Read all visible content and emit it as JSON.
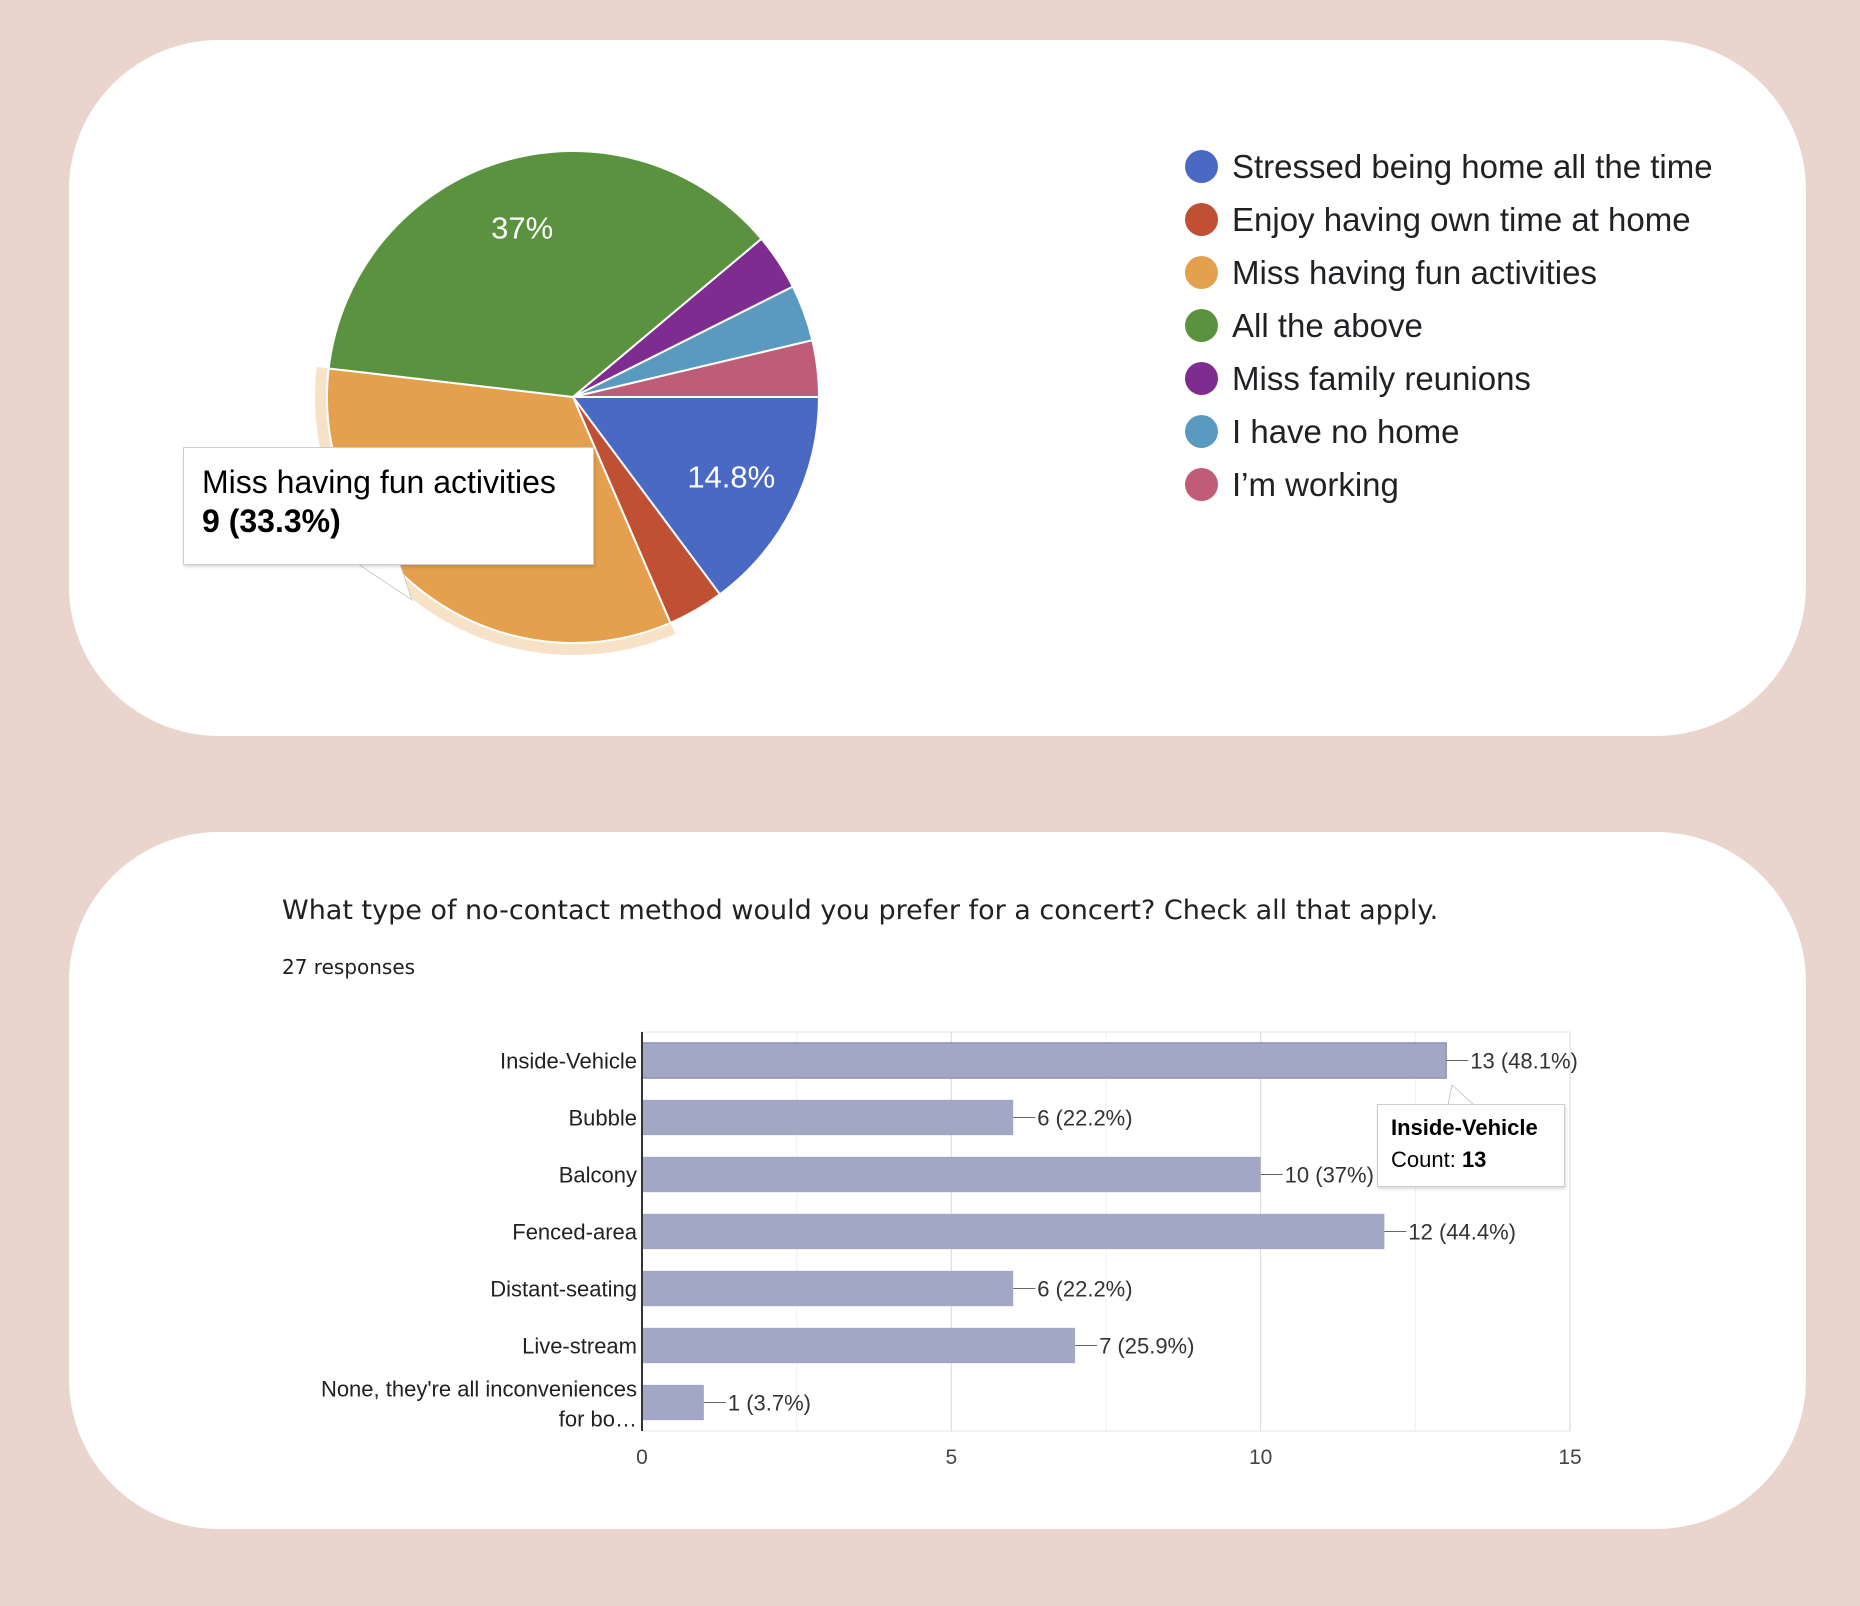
{
  "pie_chart": {
    "tooltip": {
      "label": "Miss having fun activities",
      "value": "9 (33.3%)"
    }
  },
  "bar_chart": {
    "question": "What type of no-contact method would you prefer for a concert? Check all that apply.",
    "responses": "27 responses",
    "tooltip": {
      "label": "Inside-Vehicle",
      "count_prefix": "Count: ",
      "count": "13"
    }
  },
  "chart_data": [
    {
      "type": "pie",
      "slices": [
        {
          "label": "Stressed being home all the time",
          "value": 4,
          "percent_label": "14.8%",
          "color": "#4a69c2"
        },
        {
          "label": "Enjoy having own time at home",
          "value": 1,
          "percent_label": "",
          "color": "#bf5033"
        },
        {
          "label": "Miss having fun activities",
          "value": 9,
          "percent_label": "",
          "color": "#e5a04e"
        },
        {
          "label": "All the above",
          "value": 10,
          "percent_label": "37%",
          "color": "#5b9240"
        },
        {
          "label": "Miss family reunions",
          "value": 1,
          "percent_label": "",
          "color": "#7e2c8f"
        },
        {
          "label": "I have no home",
          "value": 1,
          "percent_label": "",
          "color": "#5b9ac0"
        },
        {
          "label": "I’m working",
          "value": 1,
          "percent_label": "",
          "color": "#c05c77"
        }
      ],
      "highlighted": "Miss having fun activities",
      "legend_position": "right"
    },
    {
      "type": "bar",
      "orientation": "horizontal",
      "categories": [
        "Inside-Vehicle",
        "Bubble",
        "Balcony",
        "Fenced-area",
        "Distant-seating",
        "Live-stream",
        "None, they're all inconveniences for bo…"
      ],
      "category_lines": [
        [
          "Inside-Vehicle"
        ],
        [
          "Bubble"
        ],
        [
          "Balcony"
        ],
        [
          "Fenced-area"
        ],
        [
          "Distant-seating"
        ],
        [
          "Live-stream"
        ],
        [
          "None, they're all inconveniences",
          "for bo…"
        ]
      ],
      "values": [
        13,
        6,
        10,
        12,
        6,
        7,
        1
      ],
      "data_labels": [
        "13 (48.1%)",
        "6 (22.2%)",
        "10 (37%)",
        "12 (44.4%)",
        "6 (22.2%)",
        "7 (25.9%)",
        "1 (3.7%)"
      ],
      "xlim": [
        0,
        15
      ],
      "xticks": [
        0,
        5,
        10,
        15
      ],
      "grid": true,
      "bar_color": "#a3a7c6",
      "highlighted": "Inside-Vehicle"
    }
  ]
}
